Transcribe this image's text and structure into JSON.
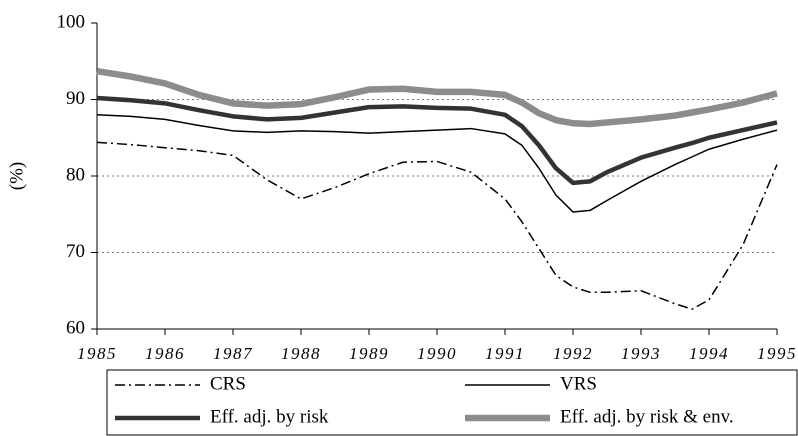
{
  "chart_data": {
    "type": "line",
    "y_label": "(%)",
    "x": [
      1985,
      1985.5,
      1986,
      1986.5,
      1987,
      1987.5,
      1988,
      1988.5,
      1989,
      1989.5,
      1990,
      1990.5,
      1991,
      1991.25,
      1991.5,
      1991.75,
      1992,
      1992.25,
      1992.5,
      1993,
      1993.5,
      1993.75,
      1994,
      1994.5,
      1995
    ],
    "series": [
      {
        "name": "CRS",
        "color": "#000000",
        "line_style": "dash-dot",
        "values": [
          84.4,
          84.1,
          83.7,
          83.3,
          82.7,
          79.5,
          77,
          78.5,
          80.3,
          81.8,
          81.9,
          80.5,
          77,
          74,
          70.5,
          67,
          65.5,
          64.8,
          64.8,
          65,
          63.3,
          62.6,
          63.8,
          71,
          81.5
        ]
      },
      {
        "name": "VRS",
        "color": "#000000",
        "line_style": "solid",
        "values": [
          88,
          87.8,
          87.4,
          86.6,
          85.9,
          85.7,
          85.9,
          85.8,
          85.6,
          85.8,
          86,
          86.2,
          85.5,
          84,
          81,
          77.5,
          75.3,
          75.5,
          76.8,
          79.3,
          81.5,
          82.5,
          83.5,
          84.8,
          86
        ]
      },
      {
        "name": "Eff. adj. by risk",
        "color": "#333333",
        "line_style": "solid",
        "values": [
          90.2,
          89.9,
          89.5,
          88.6,
          87.8,
          87.4,
          87.6,
          88.3,
          89,
          89.1,
          88.9,
          88.8,
          88,
          86.5,
          84,
          81,
          79.1,
          79.3,
          80.5,
          82.4,
          83.7,
          84.3,
          85,
          86,
          87
        ]
      },
      {
        "name": "Eff. adj. by  risk & env.",
        "color": "#8c8c8c",
        "line_style": "solid",
        "values": [
          93.7,
          93,
          92.1,
          90.6,
          89.5,
          89.2,
          89.4,
          90.3,
          91.3,
          91.4,
          91,
          91,
          90.6,
          89.6,
          88.2,
          87.3,
          86.9,
          86.8,
          87,
          87.4,
          87.9,
          88.3,
          88.7,
          89.6,
          90.8
        ]
      }
    ],
    "xlim": [
      1985,
      1995
    ],
    "xticks": [
      1985,
      1986,
      1987,
      1988,
      1989,
      1990,
      1991,
      1992,
      1993,
      1994,
      1995
    ],
    "ylim": [
      60,
      100
    ],
    "yticks": [
      60,
      70,
      80,
      90,
      100
    ],
    "grid": true
  }
}
